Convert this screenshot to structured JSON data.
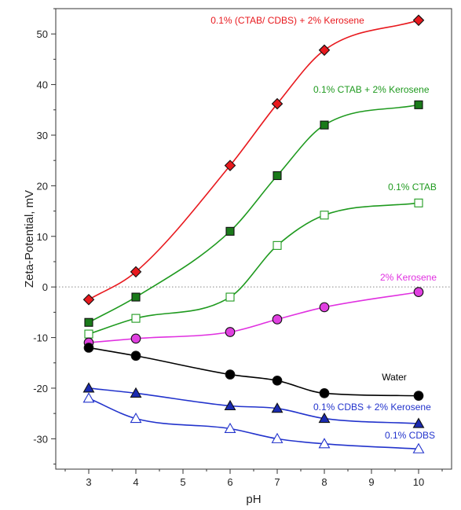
{
  "chart_data": {
    "type": "line",
    "xlabel": "pH",
    "ylabel": "Zeta-Potential, mV",
    "xlim": [
      2.3,
      10.7
    ],
    "ylim": [
      -36,
      55
    ],
    "x_ticks": [
      3,
      4,
      5,
      6,
      7,
      8,
      9,
      10
    ],
    "y_ticks": [
      -30,
      -20,
      -10,
      0,
      10,
      20,
      30,
      40,
      50
    ],
    "zero_line": true,
    "grid": false,
    "series": [
      {
        "name": "0.1% (CTAB/ CDBS) + 2% Kerosene",
        "color": "#e8191e",
        "marker": "diamond",
        "marker_fill": "#e8191e",
        "x": [
          3,
          4,
          6,
          7,
          8,
          10
        ],
        "y": [
          -2.5,
          3,
          24,
          36.2,
          46.8,
          52.7
        ]
      },
      {
        "name": "0.1% CTAB + 2% Kerosene",
        "color": "#1f9a1f",
        "marker": "square",
        "marker_fill": "#1a7a1a",
        "x": [
          3,
          4,
          6,
          7,
          8,
          10
        ],
        "y": [
          -7,
          -2,
          11,
          22,
          32,
          36
        ]
      },
      {
        "name": "0.1% CTAB",
        "color": "#1f9a1f",
        "marker": "square-open",
        "marker_fill": "#ffffff",
        "x": [
          3,
          4,
          6,
          7,
          8,
          10
        ],
        "y": [
          -9.3,
          -6.2,
          -2,
          8.2,
          14.2,
          16.6
        ]
      },
      {
        "name": "2% Kerosene",
        "color": "#e030e0",
        "marker": "circle",
        "marker_fill": "#e040e0",
        "x": [
          3,
          4,
          6,
          7,
          8,
          10
        ],
        "y": [
          -11,
          -10.2,
          -8.9,
          -6.4,
          -4,
          -1
        ]
      },
      {
        "name": "Water",
        "color": "#000000",
        "marker": "circle",
        "marker_fill": "#000000",
        "x": [
          3,
          4,
          6,
          7,
          8,
          10
        ],
        "y": [
          -12,
          -13.6,
          -17.3,
          -18.5,
          -21,
          -21.5
        ]
      },
      {
        "name": "0.1% CDBS + 2% Kerosene",
        "color": "#2233cc",
        "marker": "triangle",
        "marker_fill": "#1a2ab0",
        "x": [
          3,
          4,
          6,
          7,
          8,
          10
        ],
        "y": [
          -20,
          -21,
          -23.5,
          -24,
          -26,
          -27
        ]
      },
      {
        "name": "0.1% CDBS",
        "color": "#2233cc",
        "marker": "triangle-open",
        "marker_fill": "#ffffff",
        "x": [
          3,
          4,
          6,
          7,
          8,
          10
        ],
        "y": [
          -22,
          -26,
          -28,
          -30,
          -31,
          -32
        ]
      }
    ]
  }
}
